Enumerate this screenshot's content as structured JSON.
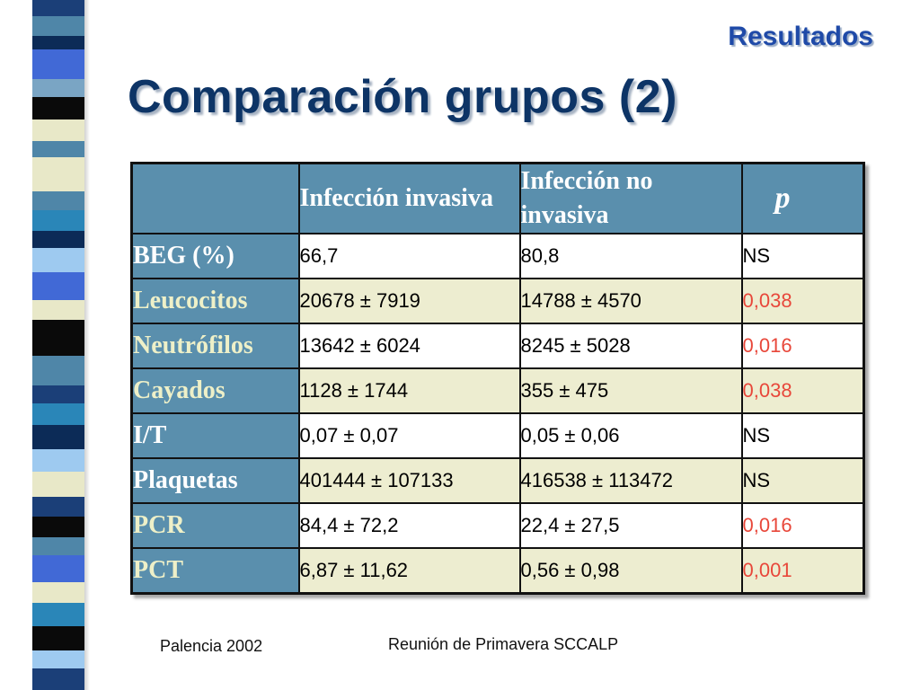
{
  "header": {
    "section": "Resultados",
    "title": "Comparación grupos (2)"
  },
  "table": {
    "columns": [
      "",
      "Infección invasiva",
      "Infección no invasiva",
      "p"
    ],
    "rows": [
      {
        "label": "BEG (%)",
        "invasiva": "66,7",
        "no_invasiva": "80,8",
        "p": "NS"
      },
      {
        "label": "Leucocitos",
        "invasiva": "20678 ± 7919",
        "no_invasiva": "14788 ± 4570",
        "p": "0,038"
      },
      {
        "label": "Neutrófilos",
        "invasiva": "13642 ± 6024",
        "no_invasiva": "8245 ± 5028",
        "p": "0,016"
      },
      {
        "label": "Cayados",
        "invasiva": "1128 ± 1744",
        "no_invasiva": "355 ± 475",
        "p": "0,038"
      },
      {
        "label": "I/T",
        "invasiva": "0,07 ± 0,07",
        "no_invasiva": "0,05 ± 0,06",
        "p": "NS"
      },
      {
        "label": "Plaquetas",
        "invasiva": "401444 ± 107133",
        "no_invasiva": "416538 ± 113472",
        "p": "NS"
      },
      {
        "label": "PCR",
        "invasiva": "84,4 ± 72,2",
        "no_invasiva": "22,4 ± 27,5",
        "p": "0,016"
      },
      {
        "label": "PCT",
        "invasiva": "6,87 ± 11,62",
        "no_invasiva": "0,56 ± 0,98",
        "p": "0,001"
      }
    ]
  },
  "footer": {
    "left": "Palencia 2002",
    "center": "Reunión de Primavera SCCALP"
  },
  "colors": {
    "header_bg": "#5a8fad",
    "significant": "#e8473a",
    "title": "#0d3466",
    "section": "#1f4aa8"
  }
}
